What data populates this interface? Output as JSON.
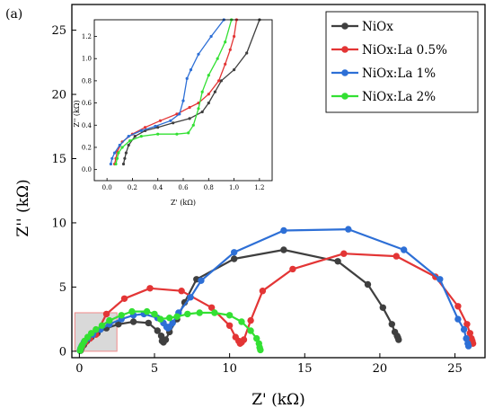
{
  "panel_label": "(a)",
  "chart_data": {
    "type": "scatter",
    "title": "",
    "xlabel": "Z' (kΩ)",
    "ylabel": "Z'' (kΩ)",
    "xlim": [
      -0.5,
      27
    ],
    "ylim": [
      -0.5,
      27
    ],
    "xticks": [
      0,
      5,
      10,
      15,
      20,
      25
    ],
    "yticks": [
      0,
      5,
      10,
      15,
      20,
      25
    ],
    "legend_position": "top-right",
    "highlight_region": {
      "x": [
        -0.3,
        2.5
      ],
      "y": [
        0,
        3.0
      ]
    },
    "series": [
      {
        "name": "NiOx",
        "color": "#3f3f3f",
        "x": [
          0.08,
          0.15,
          0.3,
          0.5,
          0.8,
          1.2,
          1.8,
          2.6,
          3.6,
          4.6,
          5.2,
          5.45,
          5.5,
          5.6,
          5.75,
          6.0,
          6.5,
          7.0,
          7.8,
          10.3,
          13.6,
          17.2,
          19.2,
          20.2,
          20.8,
          21.0,
          21.15,
          21.2,
          21.25
        ],
        "y": [
          0.05,
          0.25,
          0.5,
          0.8,
          1.1,
          1.4,
          1.8,
          2.1,
          2.3,
          2.2,
          1.6,
          1.2,
          0.8,
          0.7,
          0.9,
          1.5,
          2.5,
          3.8,
          5.6,
          7.2,
          7.9,
          7.0,
          5.2,
          3.4,
          2.1,
          1.5,
          1.2,
          1.05,
          0.9
        ]
      },
      {
        "name": "NiOx:La 0.5%",
        "color": "#e33535",
        "x": [
          0.05,
          0.1,
          0.2,
          0.4,
          0.7,
          1.1,
          1.8,
          3.0,
          4.7,
          6.8,
          8.8,
          10.0,
          10.4,
          10.6,
          10.7,
          10.8,
          10.95,
          11.4,
          12.2,
          14.2,
          17.6,
          21.1,
          23.7,
          25.2,
          25.8,
          26.0,
          26.1,
          26.15,
          26.2
        ],
        "y": [
          0.05,
          0.2,
          0.4,
          0.7,
          1.0,
          1.3,
          2.9,
          4.1,
          4.9,
          4.7,
          3.4,
          2.0,
          1.1,
          0.8,
          0.6,
          0.7,
          0.9,
          2.4,
          4.7,
          6.4,
          7.6,
          7.4,
          5.8,
          3.5,
          2.1,
          1.4,
          1.0,
          0.8,
          0.6
        ]
      },
      {
        "name": "NiOx:La 1%",
        "color": "#2d6fd6",
        "x": [
          0.04,
          0.08,
          0.15,
          0.3,
          0.55,
          0.9,
          1.4,
          2.0,
          2.8,
          3.6,
          4.3,
          5.2,
          5.6,
          5.8,
          5.9,
          6.0,
          6.2,
          6.6,
          7.4,
          8.1,
          10.3,
          13.6,
          17.9,
          21.6,
          24.0,
          25.2,
          25.6,
          25.75,
          25.85,
          25.9
        ],
        "y": [
          0.05,
          0.2,
          0.4,
          0.7,
          1.0,
          1.3,
          1.7,
          2.1,
          2.5,
          2.8,
          2.9,
          2.6,
          2.2,
          1.9,
          1.8,
          1.9,
          2.2,
          3.0,
          4.2,
          5.5,
          7.7,
          9.4,
          9.5,
          7.9,
          5.6,
          2.5,
          1.7,
          1.0,
          0.6,
          0.4
        ]
      },
      {
        "name": "NiOx:La 2%",
        "color": "#33e033",
        "x": [
          0.05,
          0.1,
          0.2,
          0.35,
          0.55,
          0.8,
          1.1,
          1.5,
          2.0,
          2.8,
          3.5,
          4.5,
          5.0,
          5.4,
          6.0,
          6.5,
          7.2,
          8.0,
          9.0,
          10.0,
          10.8,
          11.4,
          11.8,
          11.95,
          12.0,
          12.05
        ],
        "y": [
          0.05,
          0.25,
          0.5,
          0.8,
          1.1,
          1.4,
          1.7,
          2.0,
          2.4,
          2.8,
          3.1,
          3.1,
          2.9,
          2.5,
          2.6,
          2.7,
          2.9,
          3.0,
          3.0,
          2.8,
          2.3,
          1.6,
          1.0,
          0.6,
          0.3,
          0.1
        ]
      }
    ],
    "inset": {
      "xlabel": "Z' (kΩ)",
      "ylabel": "Z'' (kΩ)",
      "xlim": [
        -0.1,
        1.3
      ],
      "ylim": [
        -0.1,
        1.35
      ],
      "xticks": [
        0.0,
        0.2,
        0.4,
        0.6,
        0.8,
        1.0,
        1.2
      ],
      "yticks": [
        0.0,
        0.2,
        0.4,
        0.6,
        0.8,
        1.0,
        1.2
      ],
      "xtick_labels": [
        "0.0",
        "0.2",
        "0.4",
        "0.6",
        "0.8",
        "1.0",
        "1.2"
      ],
      "ytick_labels": [
        "0.0",
        "0.2",
        "0.4",
        "0.6",
        "0.8",
        "1.0",
        "1.2"
      ],
      "series": [
        {
          "name": "NiOx",
          "color": "#3f3f3f",
          "x": [
            0.13,
            0.14,
            0.15,
            0.17,
            0.22,
            0.3,
            0.4,
            0.52,
            0.65,
            0.75,
            0.8,
            0.85,
            0.9,
            1.0,
            1.1,
            1.2
          ],
          "y": [
            0.05,
            0.1,
            0.15,
            0.22,
            0.3,
            0.35,
            0.38,
            0.42,
            0.46,
            0.52,
            0.6,
            0.7,
            0.8,
            0.9,
            1.05,
            1.35
          ]
        },
        {
          "name": "NiOx:La 0.5%",
          "color": "#e33535",
          "x": [
            0.06,
            0.07,
            0.08,
            0.12,
            0.2,
            0.3,
            0.42,
            0.55,
            0.65,
            0.72,
            0.8,
            0.88,
            0.93,
            0.97,
            1.0,
            1.02
          ],
          "y": [
            0.05,
            0.1,
            0.16,
            0.25,
            0.32,
            0.38,
            0.44,
            0.5,
            0.56,
            0.6,
            0.68,
            0.8,
            0.95,
            1.08,
            1.2,
            1.35
          ]
        },
        {
          "name": "NiOx:La 1%",
          "color": "#2d6fd6",
          "x": [
            0.03,
            0.04,
            0.06,
            0.1,
            0.17,
            0.27,
            0.38,
            0.5,
            0.57,
            0.6,
            0.63,
            0.66,
            0.72,
            0.82,
            0.92
          ],
          "y": [
            0.05,
            0.1,
            0.15,
            0.22,
            0.3,
            0.35,
            0.39,
            0.44,
            0.5,
            0.62,
            0.82,
            0.9,
            1.04,
            1.2,
            1.35
          ]
        },
        {
          "name": "NiOx:La 2%",
          "color": "#33e033",
          "x": [
            0.07,
            0.08,
            0.09,
            0.12,
            0.18,
            0.27,
            0.4,
            0.55,
            0.64,
            0.68,
            0.72,
            0.75,
            0.8,
            0.87,
            0.93,
            0.98
          ],
          "y": [
            0.05,
            0.1,
            0.15,
            0.2,
            0.26,
            0.3,
            0.32,
            0.32,
            0.33,
            0.4,
            0.55,
            0.7,
            0.85,
            1.0,
            1.15,
            1.35
          ]
        }
      ]
    }
  }
}
